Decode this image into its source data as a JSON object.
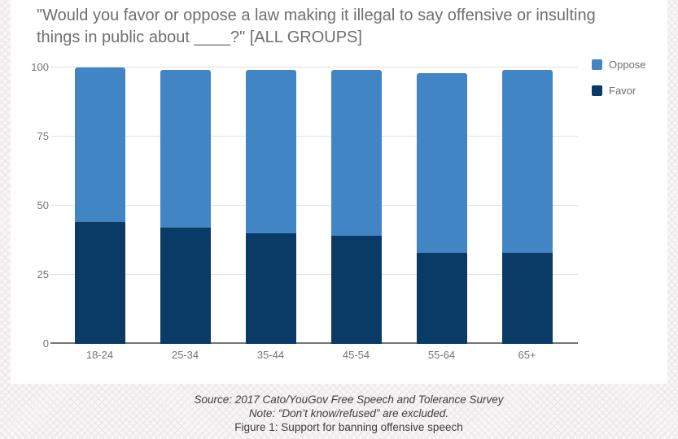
{
  "page": {
    "card_background": "#ffffff",
    "pattern_background": "#f7f5f6",
    "pattern_line_color": "#e9e5e7"
  },
  "chart": {
    "title": "\"Would you favor or oppose a law making it illegal to say offensive or insulting things in public about ____?\" [ALL GROUPS]",
    "title_color": "#6f6f6f",
    "y_ticks": [
      100,
      75,
      50,
      25,
      0
    ],
    "axis_label_color": "#757575",
    "gridline_color": "#e2e2e2",
    "legend": [
      {
        "label": "Oppose",
        "color": "#4285C4"
      },
      {
        "label": "Favor",
        "color": "#0A3A66"
      }
    ]
  },
  "chart_data": {
    "type": "bar",
    "stacked": true,
    "title": "\"Would you favor or oppose a law making it illegal to say offensive or insulting things in public about ____?\" [ALL GROUPS]",
    "categories": [
      "18-24",
      "25-34",
      "35-44",
      "45-54",
      "55-64",
      "65+"
    ],
    "series": [
      {
        "name": "Favor",
        "color": "#0A3A66",
        "values": [
          44,
          42,
          40,
          39,
          33,
          33
        ]
      },
      {
        "name": "Oppose",
        "color": "#4285C4",
        "values": [
          56,
          57,
          59,
          60,
          65,
          66
        ]
      }
    ],
    "stack_totals": [
      100,
      99,
      99,
      99,
      98,
      99
    ],
    "xlabel": "",
    "ylabel": "",
    "ylim": [
      0,
      100
    ],
    "grid": true,
    "legend_position": "top-right"
  },
  "footer": {
    "source_line": "Source: 2017 Cato/YouGov Free Speech and Tolerance Survey",
    "note_line": "Note: “Don’t know/refused” are excluded.",
    "caption_line": "Figure 1: Support for banning offensive speech"
  }
}
